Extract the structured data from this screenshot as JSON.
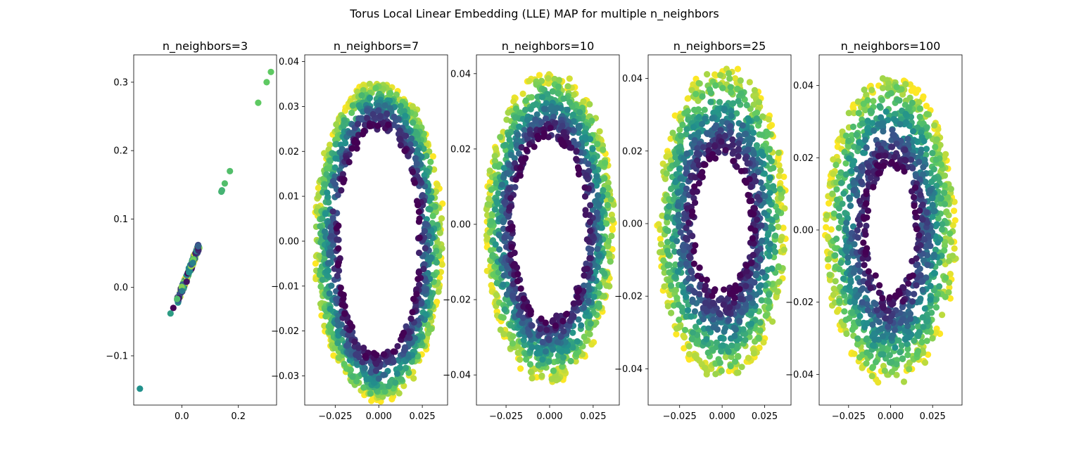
{
  "figure": {
    "suptitle": "Torus Local Linear Embedding (LLE) MAP for multiple n_neighbors"
  },
  "colormap": {
    "name": "viridis",
    "stops": [
      "#440154",
      "#3b528b",
      "#21918c",
      "#5ec962",
      "#fde725"
    ]
  },
  "chart_data": [
    {
      "type": "scatter",
      "title": "n_neighbors=3",
      "xlim": [
        -0.17,
        0.335
      ],
      "ylim": [
        -0.172,
        0.34
      ],
      "xticks": [
        0.0,
        0.2
      ],
      "xtick_labels": [
        "0.0",
        "0.2"
      ],
      "yticks": [
        -0.1,
        0.0,
        0.1,
        0.2,
        0.3
      ],
      "ytick_labels": [
        "−0.1",
        "0.0",
        "0.1",
        "0.2",
        "0.3"
      ],
      "shape": "line",
      "line": {
        "from": [
          -0.015,
          -0.02
        ],
        "to": [
          0.06,
          0.06
        ]
      },
      "outliers": [
        {
          "x": 0.315,
          "y": 0.315,
          "c": 0.75
        },
        {
          "x": 0.3,
          "y": 0.3,
          "c": 0.75
        },
        {
          "x": 0.27,
          "y": 0.27,
          "c": 0.75
        },
        {
          "x": 0.17,
          "y": 0.17,
          "c": 0.7
        },
        {
          "x": 0.152,
          "y": 0.152,
          "c": 0.7
        },
        {
          "x": 0.14,
          "y": 0.14,
          "c": 0.65
        },
        {
          "x": 0.142,
          "y": 0.142,
          "c": 0.65
        },
        {
          "x": -0.03,
          "y": -0.03,
          "c": 0.0
        },
        {
          "x": -0.04,
          "y": -0.038,
          "c": 0.55
        },
        {
          "x": -0.148,
          "y": -0.148,
          "c": 0.5
        },
        {
          "x": 0.058,
          "y": 0.06,
          "c": 0.3
        }
      ]
    },
    {
      "type": "scatter",
      "title": "n_neighbors=7",
      "xlim": [
        -0.0425,
        0.0395
      ],
      "ylim": [
        -0.0365,
        0.0415
      ],
      "xticks": [
        -0.025,
        0.0,
        0.025
      ],
      "xtick_labels": [
        "−0.025",
        "0.000",
        "0.025"
      ],
      "yticks": [
        -0.03,
        -0.02,
        -0.01,
        0.0,
        0.01,
        0.02,
        0.03,
        0.04
      ],
      "ytick_labels": [
        "−0.03",
        "−0.02",
        "−0.01",
        "0.00",
        "0.01",
        "0.02",
        "0.03",
        "0.04"
      ],
      "shape": "ring",
      "ring": {
        "cx": 0.0,
        "cy": 0.0,
        "inner_rx": 0.023,
        "inner_ry": 0.0255,
        "outer_rx": 0.037,
        "outer_ry": 0.0355
      }
    },
    {
      "type": "scatter",
      "title": "n_neighbors=10",
      "xlim": [
        -0.042,
        0.04
      ],
      "ylim": [
        -0.048,
        0.045
      ],
      "xticks": [
        -0.025,
        0.0,
        0.025
      ],
      "xtick_labels": [
        "−0.025",
        "0.000",
        "0.025"
      ],
      "yticks": [
        -0.04,
        -0.02,
        0.0,
        0.02,
        0.04
      ],
      "ytick_labels": [
        "−0.04",
        "−0.02",
        "0.00",
        "0.02",
        "0.04"
      ],
      "shape": "ring",
      "ring": {
        "cx": 0.0,
        "cy": -0.001,
        "inner_rx": 0.021,
        "inner_ry": 0.024,
        "outer_rx": 0.037,
        "outer_ry": 0.041
      }
    },
    {
      "type": "scatter",
      "title": "n_neighbors=25",
      "xlim": [
        -0.0435,
        0.0405
      ],
      "ylim": [
        -0.05,
        0.0465
      ],
      "xticks": [
        -0.025,
        0.0,
        0.025
      ],
      "xtick_labels": [
        "−0.025",
        "0.000",
        "0.025"
      ],
      "yticks": [
        -0.04,
        -0.02,
        0.0,
        0.02,
        0.04
      ],
      "ytick_labels": [
        "−0.04",
        "−0.02",
        "0.00",
        "0.02",
        "0.04"
      ],
      "shape": "ring",
      "ring": {
        "cx": 0.0,
        "cy": 0.0,
        "inner_rx": 0.0165,
        "inner_ry": 0.0185,
        "outer_rx": 0.038,
        "outer_ry": 0.043
      }
    },
    {
      "type": "scatter",
      "title": "n_neighbors=100",
      "xlim": [
        -0.0425,
        0.0425
      ],
      "ylim": [
        -0.0485,
        0.0485
      ],
      "xticks": [
        -0.025,
        0.0,
        0.025
      ],
      "xtick_labels": [
        "−0.025",
        "0.000",
        "0.025"
      ],
      "yticks": [
        -0.04,
        -0.02,
        0.0,
        0.02,
        0.04
      ],
      "ytick_labels": [
        "−0.04",
        "−0.02",
        "0.00",
        "0.02",
        "0.04"
      ],
      "shape": "ring",
      "ring": {
        "cx": 0.0,
        "cy": 0.0,
        "inner_rx": 0.014,
        "inner_ry": 0.0175,
        "outer_rx": 0.039,
        "outer_ry": 0.043
      }
    }
  ]
}
